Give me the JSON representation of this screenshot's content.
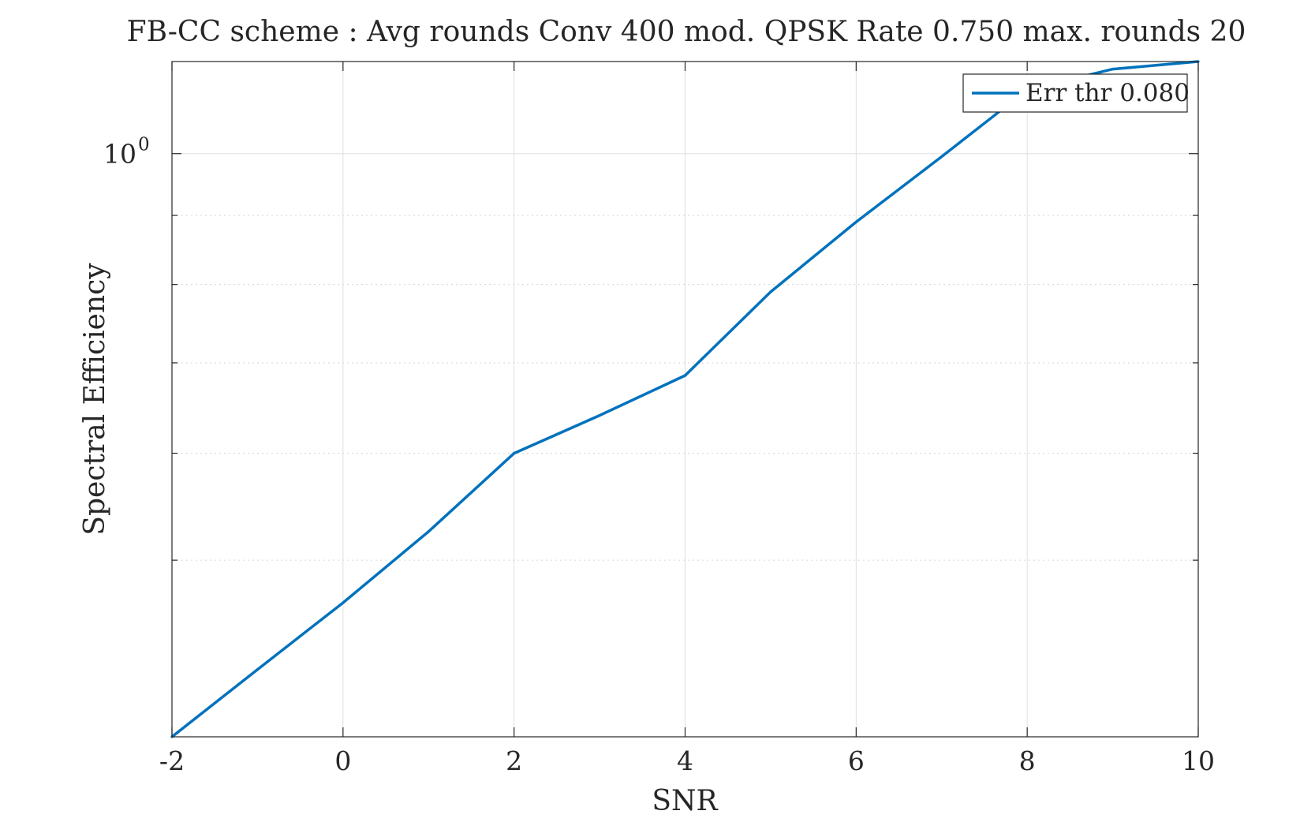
{
  "chart_data": {
    "type": "line",
    "title": "FB-CC scheme : Avg rounds Conv 400 mod. QPSK Rate 0.750 max. rounds 20",
    "xlabel": "SNR",
    "ylabel": "Spectral Efficiency",
    "xlim": [
      -2,
      10
    ],
    "ylim": [
      0.37,
      1.17
    ],
    "yscale": "log",
    "xticks": [
      -2,
      0,
      2,
      4,
      6,
      8,
      10
    ],
    "xtick_labels": [
      "-2",
      "0",
      "2",
      "4",
      "6",
      "8",
      "10"
    ],
    "yticks_major": [
      1
    ],
    "ytick_base": "10",
    "ytick_exponent": "0",
    "yticks_minor": [
      0.5,
      0.6,
      0.7,
      0.8,
      0.9
    ],
    "grid": true,
    "legend_position": "top-right",
    "series": [
      {
        "name": "Err thr 0.080",
        "color": "#0072BD",
        "x": [
          -2,
          -1,
          0,
          1,
          2,
          3,
          4,
          5,
          6,
          7,
          8,
          9,
          10
        ],
        "y": [
          0.37,
          0.415,
          0.465,
          0.525,
          0.6,
          0.64,
          0.685,
          0.79,
          0.89,
          0.995,
          1.115,
          1.155,
          1.17
        ]
      }
    ]
  }
}
